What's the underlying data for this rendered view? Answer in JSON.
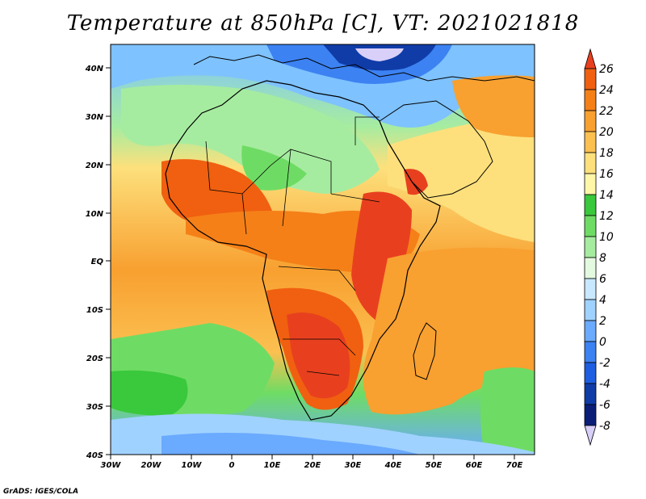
{
  "title": "Temperature at 850hPa [C], VT: 2021021818",
  "credit": "GrADS: IGES/COLA",
  "map": {
    "lat_labels": [
      "40N",
      "30N",
      "20N",
      "10N",
      "EQ",
      "10S",
      "20S",
      "30S",
      "40S"
    ],
    "lon_labels": [
      "30W",
      "20W",
      "10W",
      "0",
      "10E",
      "20E",
      "30E",
      "40E",
      "50E",
      "60E",
      "70E"
    ]
  },
  "colorbar": {
    "labels": [
      "26",
      "24",
      "22",
      "20",
      "18",
      "16",
      "14",
      "12",
      "10",
      "8",
      "6",
      "4",
      "2",
      "0",
      "-2",
      "-4",
      "-6",
      "-8"
    ],
    "colors": [
      "#e8401f",
      "#f06010",
      "#f58018",
      "#f8a030",
      "#fbc050",
      "#fde07c",
      "#fff6a8",
      "#3ac83c",
      "#6edc64",
      "#a6eca0",
      "#e4fae0",
      "#c8e8ff",
      "#a0d2ff",
      "#6aaaff",
      "#3c82f2",
      "#1e5ee0",
      "#103ca8",
      "#0a1e78",
      "#d8d0f8"
    ]
  }
}
